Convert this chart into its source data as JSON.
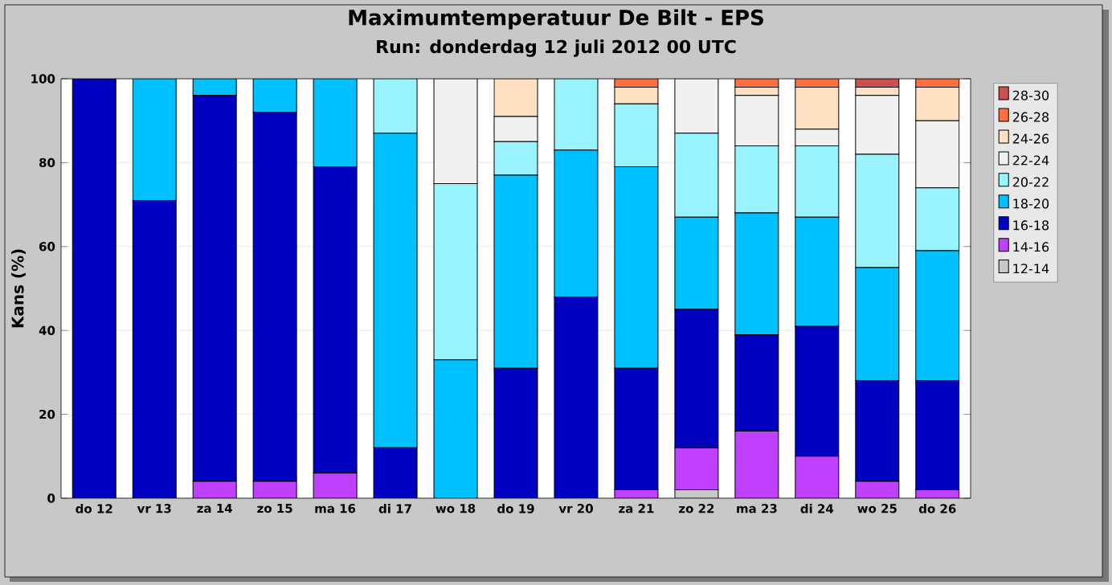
{
  "chart_data": {
    "type": "bar",
    "title": "Maximumtemperatuur De Bilt - EPS",
    "subtitle": "Run: donderdag 12 juli 2012    00 UTC",
    "ylabel": "Kans (%)",
    "categories": [
      "do 12",
      "vr 13",
      "za 14",
      "zo 15",
      "ma 16",
      "di 17",
      "wo 18",
      "do 19",
      "vr 20",
      "za 21",
      "zo 22",
      "ma 23",
      "di 24",
      "wo 25",
      "do 26"
    ],
    "stacked": true,
    "ylim": [
      0,
      100
    ],
    "yticks": [
      0,
      20,
      40,
      60,
      80,
      100
    ],
    "grid": "y",
    "legend": "right",
    "series": [
      {
        "name": "12-14",
        "color": "#c8c8c8",
        "values": [
          0,
          0,
          0,
          0,
          0,
          0,
          0,
          0,
          0,
          0,
          2,
          0,
          0,
          0,
          0
        ]
      },
      {
        "name": "14-16",
        "color": "#c040ff",
        "values": [
          0,
          0,
          4,
          4,
          6,
          0,
          0,
          0,
          0,
          2,
          10,
          16,
          10,
          4,
          2
        ]
      },
      {
        "name": "16-18",
        "color": "#0000c0",
        "values": [
          100,
          71,
          92,
          88,
          73,
          12,
          0,
          31,
          48,
          29,
          33,
          23,
          31,
          24,
          26
        ]
      },
      {
        "name": "18-20",
        "color": "#00c0ff",
        "values": [
          0,
          29,
          4,
          8,
          21,
          75,
          33,
          46,
          35,
          48,
          22,
          29,
          26,
          27,
          31
        ]
      },
      {
        "name": "20-22",
        "color": "#99f3ff",
        "values": [
          0,
          0,
          0,
          0,
          0,
          13,
          42,
          8,
          17,
          15,
          20,
          16,
          17,
          27,
          15
        ]
      },
      {
        "name": "22-24",
        "color": "#f0f0f0",
        "values": [
          0,
          0,
          0,
          0,
          0,
          0,
          25,
          6,
          0,
          0,
          13,
          12,
          4,
          14,
          16
        ]
      },
      {
        "name": "24-26",
        "color": "#ffe0c0",
        "values": [
          0,
          0,
          0,
          0,
          0,
          0,
          0,
          9,
          0,
          4,
          0,
          2,
          10,
          2,
          8
        ]
      },
      {
        "name": "26-28",
        "color": "#ff7040",
        "values": [
          0,
          0,
          0,
          0,
          0,
          0,
          0,
          0,
          0,
          2,
          0,
          2,
          2,
          0,
          2
        ]
      },
      {
        "name": "28-30",
        "color": "#cc5050",
        "values": [
          0,
          0,
          0,
          0,
          0,
          0,
          0,
          0,
          0,
          0,
          0,
          0,
          0,
          2,
          0
        ]
      }
    ]
  }
}
